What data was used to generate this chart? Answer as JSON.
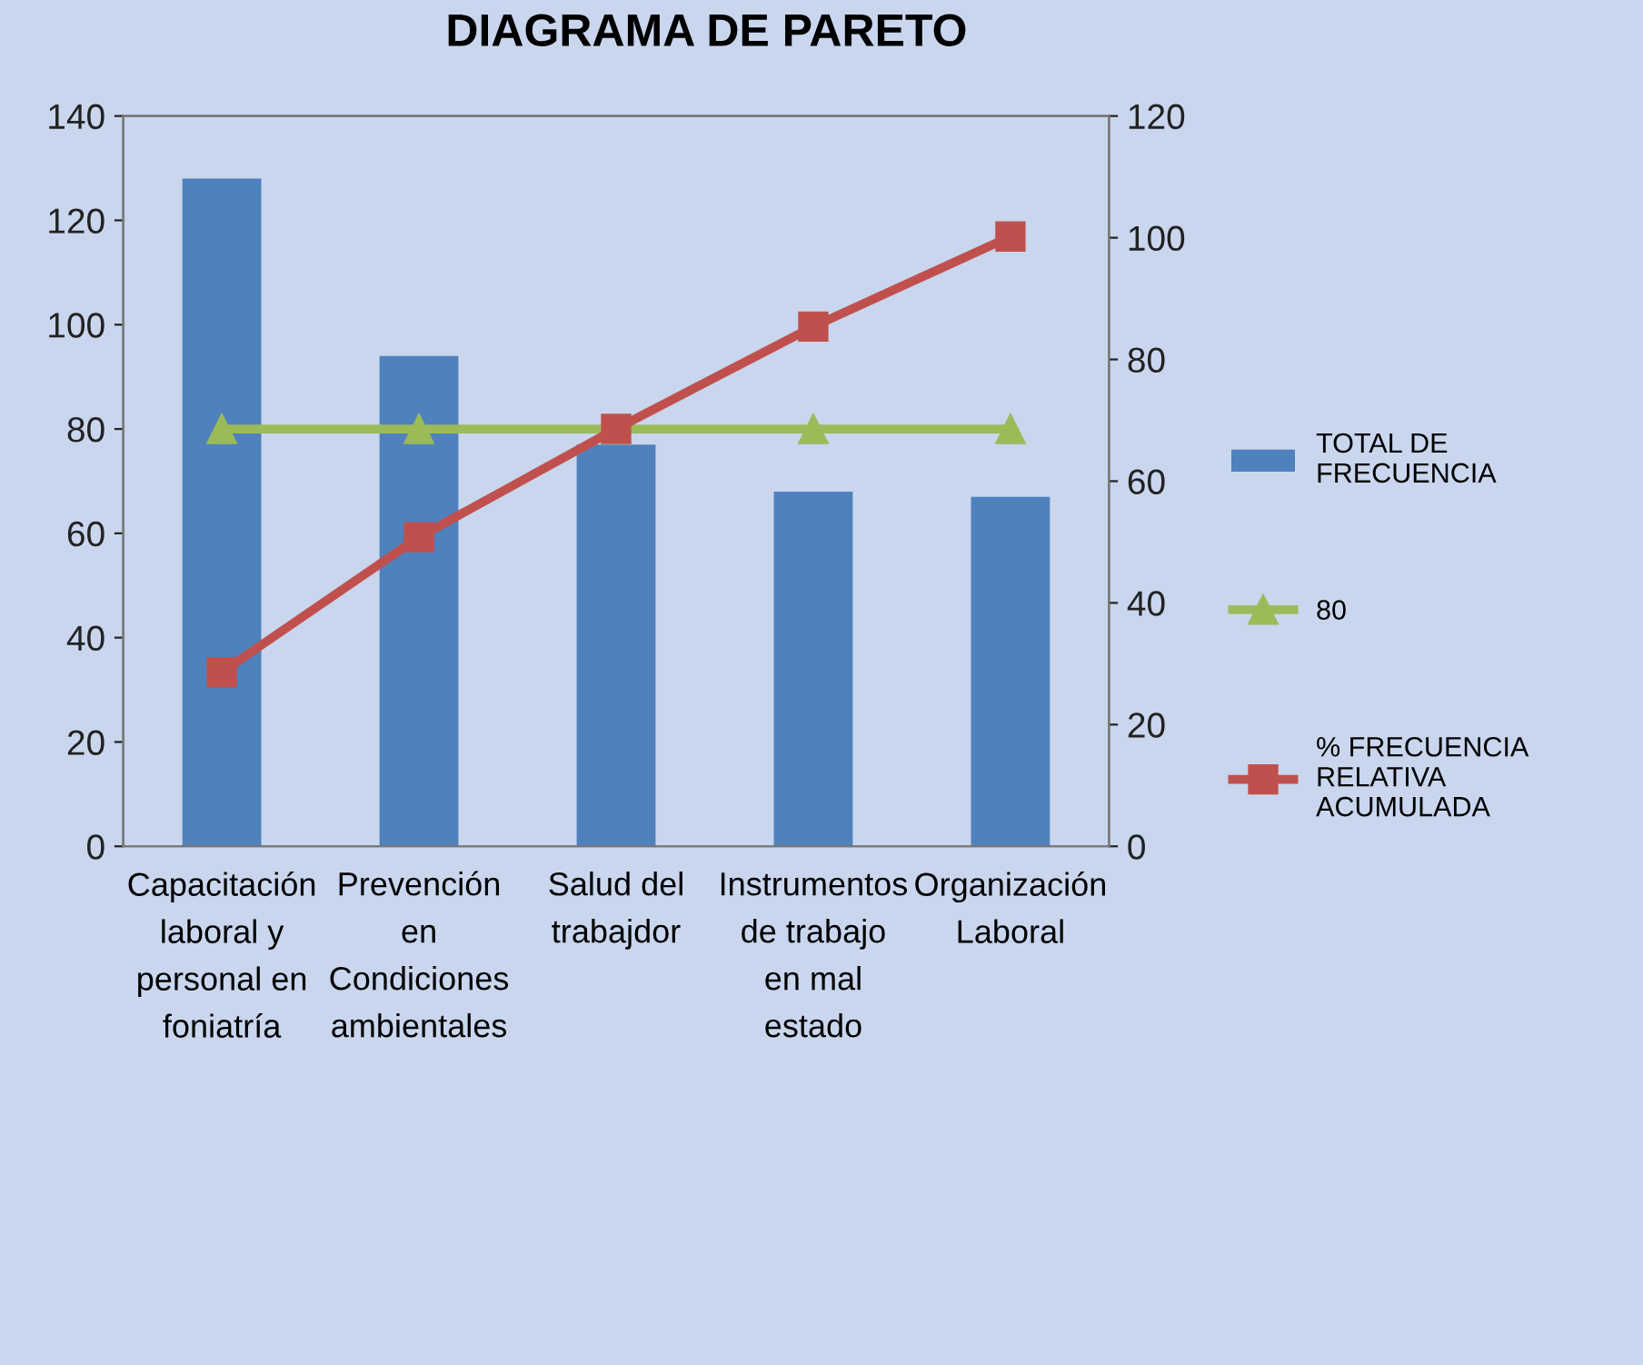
{
  "chart_data": {
    "type": "bar",
    "title": "DIAGRAMA DE PARETO",
    "categories": [
      "Capacitación laboral y personal en foniatría",
      "Prevención en Condiciones ambientales",
      "Salud del trabajdor",
      "Instrumentos de trabajo en mal estado",
      "Organización Laboral"
    ],
    "series": [
      {
        "name": "TOTAL DE FRECUENCIA",
        "color": "#4f81bd",
        "values": [
          128,
          94,
          77,
          68,
          67
        ]
      },
      {
        "name": "80",
        "type": "line",
        "color": "#9bbb59",
        "marker": "triangle",
        "values": [
          80,
          80,
          80,
          80,
          80
        ]
      },
      {
        "name": "% FRECUENCIA RELATIVA ACUMULADA",
        "type": "line",
        "axis": "y2",
        "color": "#c0504d",
        "marker": "square",
        "values": [
          28.6,
          50.8,
          68.6,
          85.4,
          100.2
        ]
      }
    ],
    "ylim": [
      0,
      140
    ],
    "yticks": [
      0,
      20,
      40,
      60,
      80,
      100,
      120,
      140
    ],
    "y2lim": [
      0,
      120
    ],
    "y2ticks": [
      0,
      20,
      40,
      60,
      80,
      100,
      120
    ],
    "grid": false,
    "legend": "right"
  }
}
